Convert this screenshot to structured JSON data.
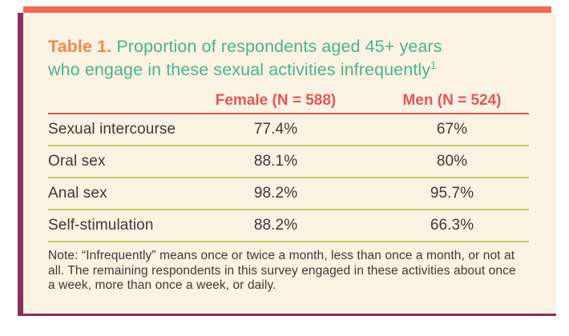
{
  "colors": {
    "top_bar": "#f0694f",
    "purple": "#8d2e5c",
    "cream": "#faf2e3",
    "orange": "#f5884d",
    "teal": "#4ab392",
    "coral": "#e25857",
    "line_red": "#e0524b",
    "line_green": "#c6cf6b",
    "text": "#3c3a37"
  },
  "title": {
    "prefix": "Table 1.",
    "line1": "Proportion of respondents aged 45+ years",
    "line2": "who engage in these sexual activities infrequently",
    "footnote_marker": "1"
  },
  "table": {
    "columns": [
      {
        "label": "Female (N = 588)"
      },
      {
        "label": "Men (N = 524)"
      }
    ],
    "rows": [
      {
        "label": "Sexual intercourse",
        "female": "77.4%",
        "men": "67%"
      },
      {
        "label": "Oral sex",
        "female": "88.1%",
        "men": "80%"
      },
      {
        "label": "Anal sex",
        "female": "98.2%",
        "men": "95.7%"
      },
      {
        "label": "Self-stimulation",
        "female": "88.2%",
        "men": "66.3%"
      }
    ]
  },
  "note": {
    "text": "Note: “Infrequently” means once or twice a month, less than once a month, or not at all. The remaining respondents in this survey engaged in these activities about once a week, more than once a week, or daily."
  },
  "chart_data": {
    "type": "table",
    "title": "Table 1. Proportion of respondents aged 45+ years who engage in these sexual activities infrequently",
    "footnote_marker": "1",
    "categories": [
      "Sexual intercourse",
      "Oral sex",
      "Anal sex",
      "Self-stimulation"
    ],
    "series": [
      {
        "name": "Female (N = 588)",
        "values": [
          77.4,
          88.1,
          98.2,
          88.2
        ]
      },
      {
        "name": "Men (N = 524)",
        "values": [
          67,
          80,
          95.7,
          66.3
        ]
      }
    ],
    "unit": "%",
    "note": "Note: “Infrequently” means once or twice a month, less than once a month, or not at all. The remaining respondents in this survey engaged in these activities about once a week, more than once a week, or daily.",
    "layout": {
      "grid": "horizontal separator lines between rows",
      "legend_position": "column headers"
    }
  }
}
